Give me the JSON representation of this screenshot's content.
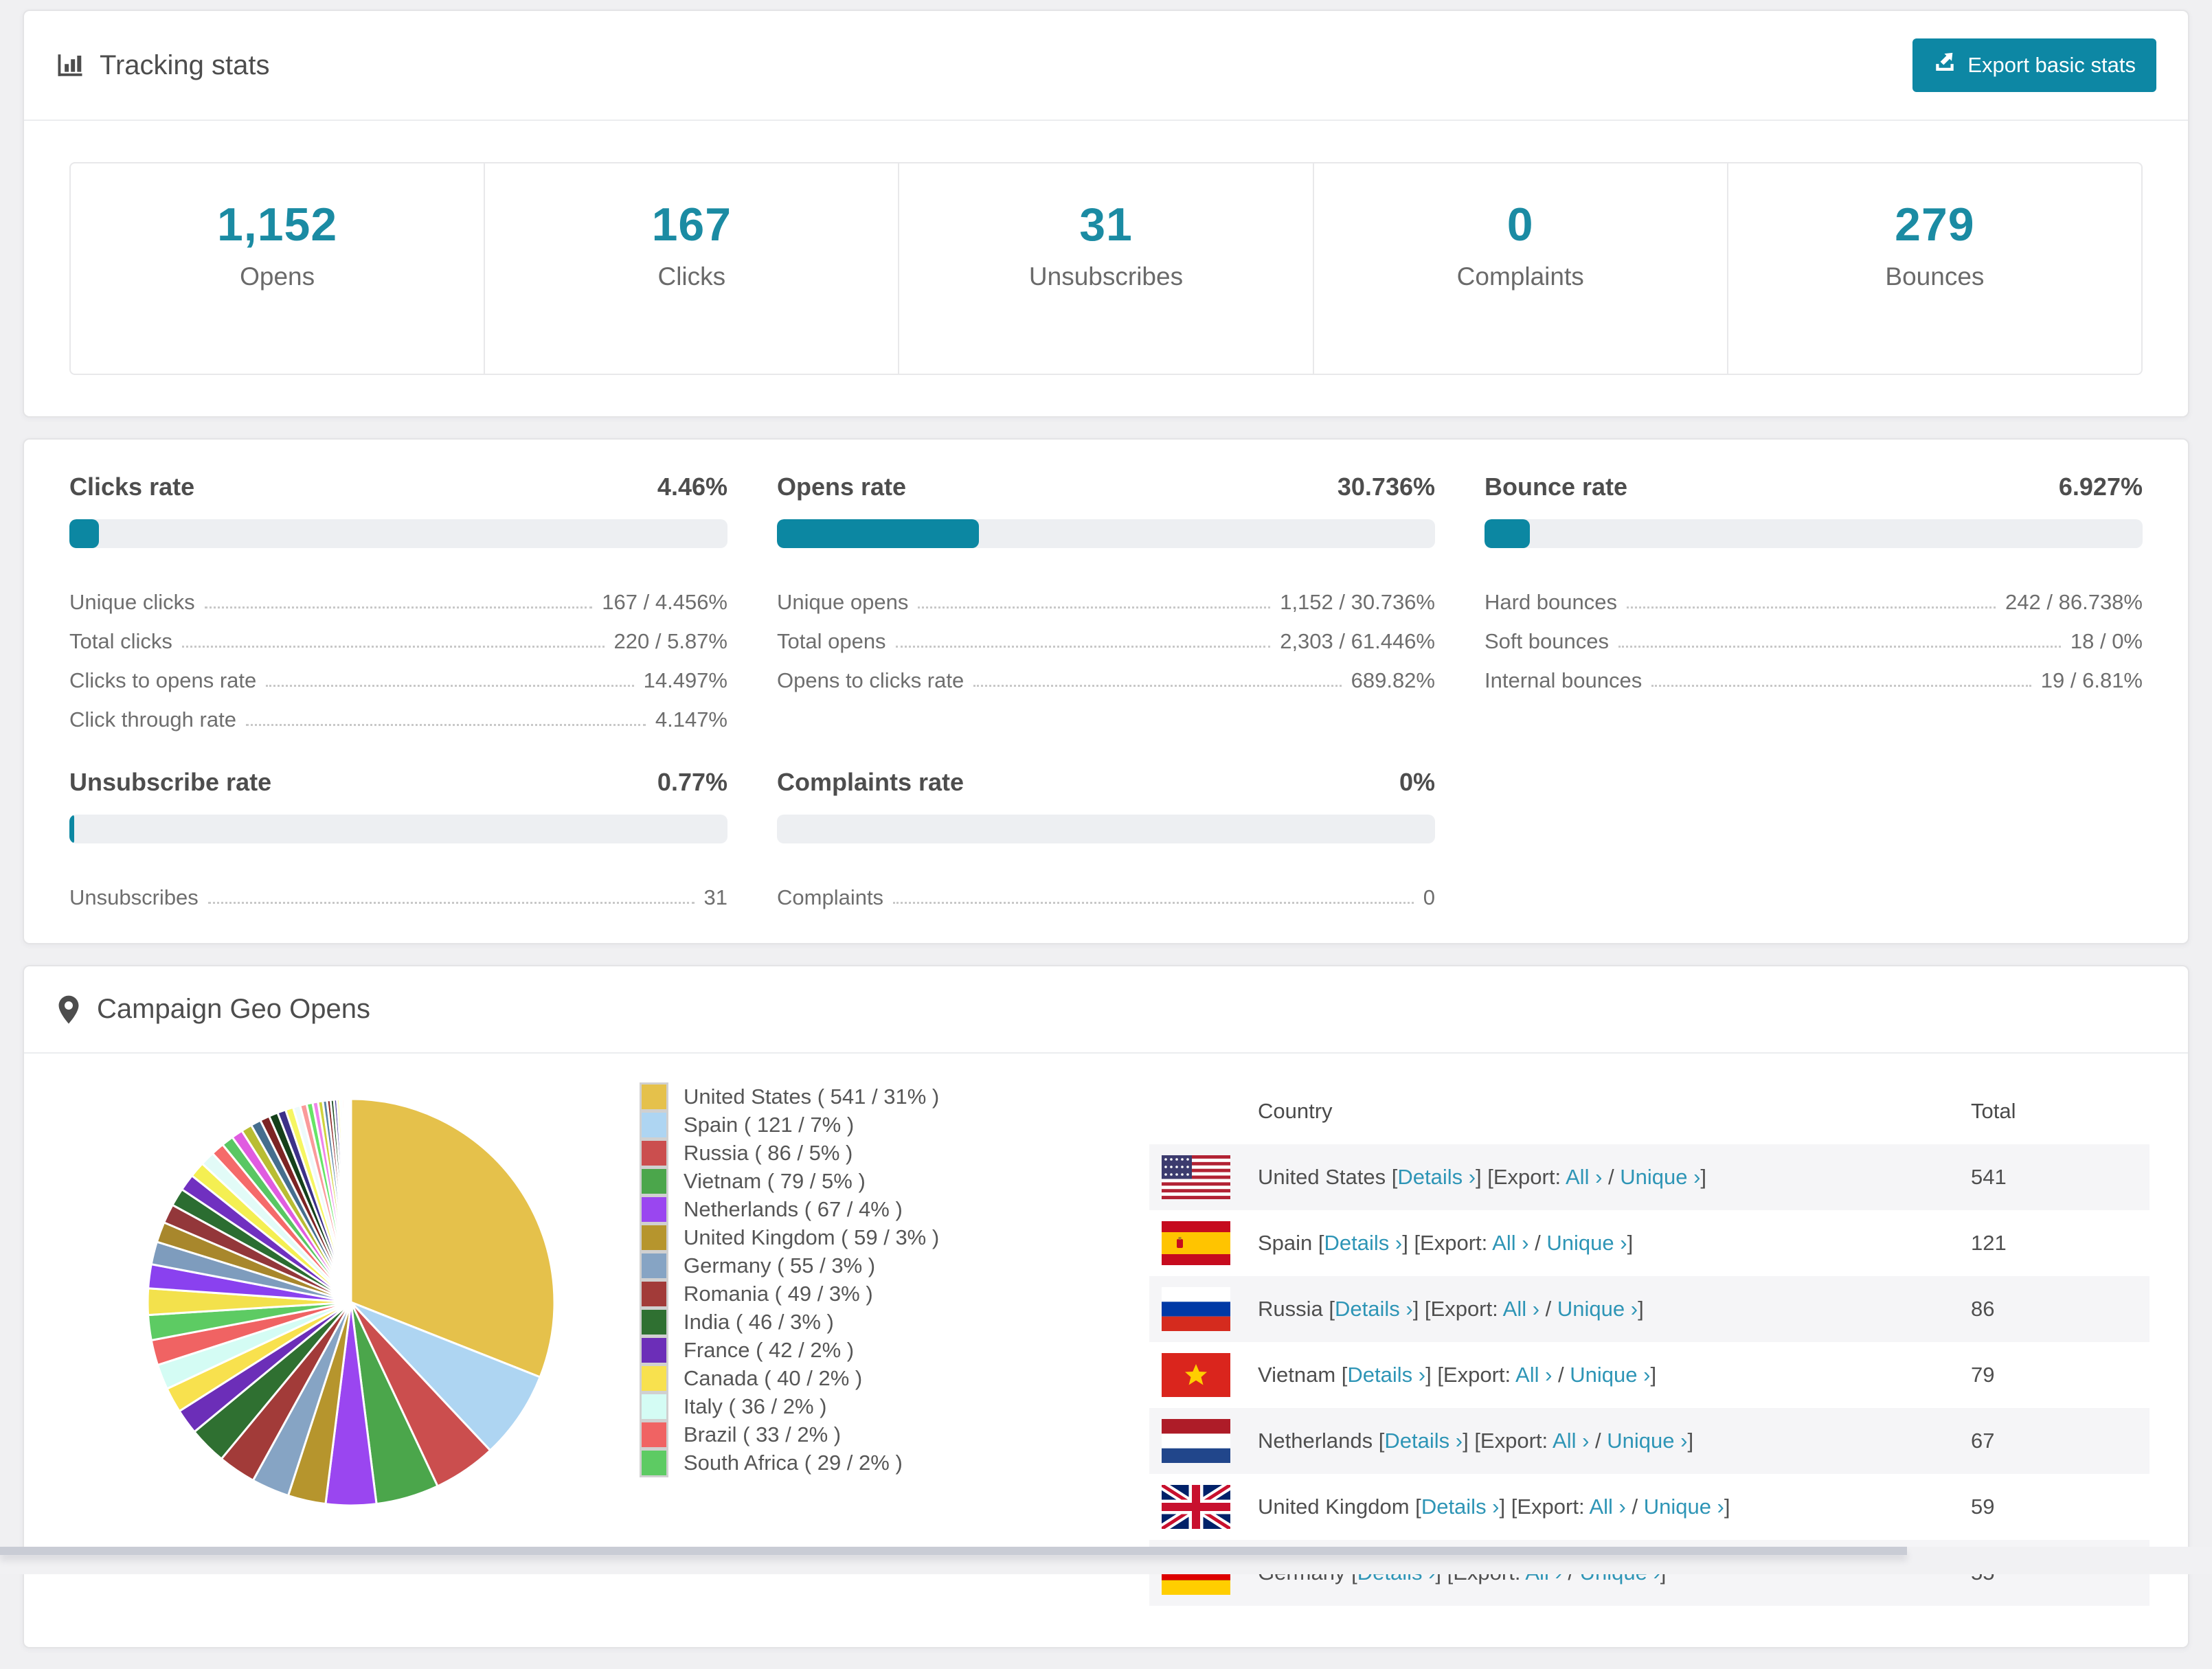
{
  "tracking": {
    "title": "Tracking stats",
    "export_button": "Export basic stats",
    "accent_color": "#1b8ba3",
    "button_color": "#0d87a4",
    "stats": [
      {
        "value": "1,152",
        "label": "Opens"
      },
      {
        "value": "167",
        "label": "Clicks"
      },
      {
        "value": "31",
        "label": "Unsubscribes"
      },
      {
        "value": "0",
        "label": "Complaints"
      },
      {
        "value": "279",
        "label": "Bounces"
      }
    ]
  },
  "rates": {
    "bar_fill_color": "#0c87a2",
    "blocks": [
      {
        "title": "Clicks rate",
        "value": "4.46%",
        "percent": 4.46,
        "rows": [
          {
            "label": "Unique clicks",
            "value": "167 / 4.456%"
          },
          {
            "label": "Total clicks",
            "value": "220 / 5.87%"
          },
          {
            "label": "Clicks to opens rate",
            "value": "14.497%"
          },
          {
            "label": "Click through rate",
            "value": "4.147%"
          }
        ]
      },
      {
        "title": "Opens rate",
        "value": "30.736%",
        "percent": 30.736,
        "rows": [
          {
            "label": "Unique opens",
            "value": "1,152 / 30.736%"
          },
          {
            "label": "Total opens",
            "value": "2,303 / 61.446%"
          },
          {
            "label": "Opens to clicks rate",
            "value": "689.82%"
          }
        ]
      },
      {
        "title": "Bounce rate",
        "value": "6.927%",
        "percent": 6.927,
        "rows": [
          {
            "label": "Hard bounces",
            "value": "242 / 86.738%"
          },
          {
            "label": "Soft bounces",
            "value": "18 / 0%"
          },
          {
            "label": "Internal bounces",
            "value": "19 / 6.81%"
          }
        ]
      },
      {
        "title": "Unsubscribe rate",
        "value": "0.77%",
        "percent": 0.77,
        "rows": [
          {
            "label": "Unsubscribes",
            "value": "31"
          }
        ]
      },
      {
        "title": "Complaints rate",
        "value": "0%",
        "percent": 0,
        "rows": [
          {
            "label": "Complaints",
            "value": "0"
          }
        ]
      }
    ]
  },
  "geo": {
    "title": "Campaign Geo Opens",
    "table": {
      "country_header": "Country",
      "total_header": "Total",
      "link_labels": {
        "details": "Details ›",
        "all": "All ›",
        "unique": "Unique ›"
      },
      "fmt": {
        "pre_details": " [",
        "mid": "] [Export: ",
        "slash": " / ",
        "end": "]"
      },
      "rows": [
        {
          "country": "United States",
          "flag": "us",
          "total": "541"
        },
        {
          "country": "Spain",
          "flag": "es",
          "total": "121"
        },
        {
          "country": "Russia",
          "flag": "ru",
          "total": "86"
        },
        {
          "country": "Vietnam",
          "flag": "vn",
          "total": "79"
        },
        {
          "country": "Netherlands",
          "flag": "nl",
          "total": "67"
        },
        {
          "country": "United Kingdom",
          "flag": "gb",
          "total": "59"
        },
        {
          "country": "Germany",
          "flag": "de",
          "total": "55"
        }
      ]
    }
  },
  "chart_data": {
    "type": "pie",
    "title": "Campaign Geo Opens",
    "legend_position": "right",
    "start_angle_deg": 0,
    "legend": [
      {
        "label": "United States ( 541 / 31% )",
        "country": "United States",
        "value": 541,
        "percent": 31,
        "color": "#e5c14b"
      },
      {
        "label": "Spain ( 121 / 7% )",
        "country": "Spain",
        "value": 121,
        "percent": 7,
        "color": "#aed5f2"
      },
      {
        "label": "Russia ( 86 / 5% )",
        "country": "Russia",
        "value": 86,
        "percent": 5,
        "color": "#cb4e4e"
      },
      {
        "label": "Vietnam ( 79 / 5% )",
        "country": "Vietnam",
        "value": 79,
        "percent": 5,
        "color": "#4ba64b"
      },
      {
        "label": "Netherlands ( 67 / 4% )",
        "country": "Netherlands",
        "value": 67,
        "percent": 4,
        "color": "#9a46f0"
      },
      {
        "label": "United Kingdom ( 59 / 3% )",
        "country": "United Kingdom",
        "value": 59,
        "percent": 3,
        "color": "#b6952d"
      },
      {
        "label": "Germany ( 55 / 3% )",
        "country": "Germany",
        "value": 55,
        "percent": 3,
        "color": "#86a4c4"
      },
      {
        "label": "Romania ( 49 / 3% )",
        "country": "Romania",
        "value": 49,
        "percent": 3,
        "color": "#a23b39"
      },
      {
        "label": "India ( 46 / 3% )",
        "country": "India",
        "value": 46,
        "percent": 3,
        "color": "#2f7031"
      },
      {
        "label": "France ( 42 / 2% )",
        "country": "France",
        "value": 42,
        "percent": 2,
        "color": "#6c2eb8"
      },
      {
        "label": "Canada ( 40 / 2% )",
        "country": "Canada",
        "value": 40,
        "percent": 2,
        "color": "#f8e14e"
      },
      {
        "label": "Italy ( 36 / 2% )",
        "country": "Italy",
        "value": 36,
        "percent": 2,
        "color": "#d4fcf4"
      },
      {
        "label": "Brazil ( 33 / 2% )",
        "country": "Brazil",
        "value": 33,
        "percent": 2,
        "color": "#f06363"
      },
      {
        "label": "South Africa ( 29 / 2% )",
        "country": "South Africa",
        "value": 29,
        "percent": 2,
        "color": "#5dcb63"
      }
    ],
    "others_percent": 26,
    "others_weights": [
      2.2,
      2.0,
      1.9,
      1.7,
      1.6,
      1.5,
      1.4,
      1.3,
      1.2,
      1.1,
      1.0,
      0.95,
      0.9,
      0.85,
      0.8,
      0.75,
      0.7,
      0.65,
      0.6,
      0.55,
      0.5,
      0.45,
      0.4,
      0.35,
      0.3,
      0.28,
      0.25,
      0.22,
      0.2,
      0.18,
      0.15,
      0.12,
      0.1,
      0.08,
      0.06,
      0.05
    ],
    "others_colors": [
      "#f3e14c",
      "#8a41ef",
      "#7e9cbd",
      "#a8872c",
      "#93373a",
      "#2b6d31",
      "#7030c0",
      "#f4ef52",
      "#e2fbf7",
      "#f56a6a",
      "#59c763",
      "#e05ce0",
      "#b9bd33",
      "#456e8e",
      "#7c2424",
      "#15401a",
      "#3d3188",
      "#f6f661",
      "#eefafb",
      "#fa9a9a",
      "#66e566",
      "#ef83ea",
      "#cfd23d",
      "#5b84a4",
      "#8f2b2b",
      "#1d4f22",
      "#4f3f9e",
      "#fafa7a",
      "#f2fdfd",
      "#fcb0b0",
      "#7ff07f",
      "#d966e0",
      "#e3e55a",
      "#7aa0bd",
      "#a84444",
      "#2f6b3a"
    ]
  }
}
